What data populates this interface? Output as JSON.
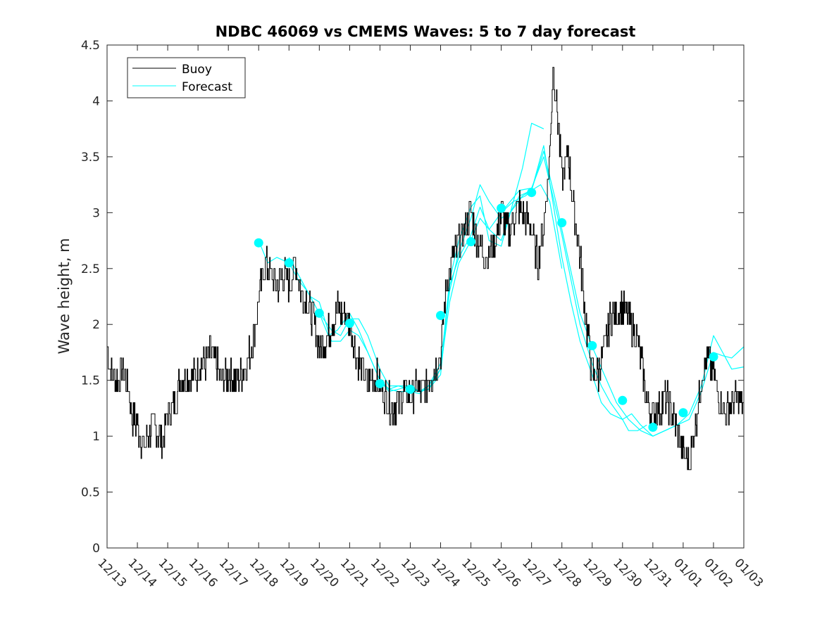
{
  "chart_data": {
    "type": "line",
    "title": "NDBC 46069 vs CMEMS Waves: 5 to 7 day forecast",
    "xlabel": "",
    "ylabel": "Wave height, m",
    "xlim": [
      0,
      21
    ],
    "ylim": [
      0,
      4.5
    ],
    "x_tick_labels": [
      "12/13",
      "12/14",
      "12/15",
      "12/16",
      "12/17",
      "12/18",
      "12/19",
      "12/20",
      "12/21",
      "12/22",
      "12/23",
      "12/24",
      "12/25",
      "12/26",
      "12/27",
      "12/28",
      "12/29",
      "12/30",
      "12/31",
      "01/01",
      "01/02",
      "01/03"
    ],
    "y_tick_labels": [
      "0",
      "0.5",
      "1",
      "1.5",
      "2",
      "2.5",
      "3",
      "3.5",
      "4",
      "4.5"
    ],
    "legend": {
      "position": "top-left",
      "entries": [
        {
          "name": "Buoy",
          "color": "#000000"
        },
        {
          "name": "Forecast",
          "color": "#00ffff"
        }
      ]
    },
    "series": [
      {
        "name": "Buoy",
        "color": "#000000",
        "keypoints": [
          [
            0,
            1.85
          ],
          [
            0.1,
            1.6
          ],
          [
            0.3,
            1.5
          ],
          [
            0.5,
            1.6
          ],
          [
            0.7,
            1.45
          ],
          [
            0.8,
            1.2
          ],
          [
            1.0,
            1.1
          ],
          [
            1.1,
            1.0
          ],
          [
            1.2,
            0.9
          ],
          [
            1.4,
            1.05
          ],
          [
            1.6,
            1.1
          ],
          [
            1.8,
            0.95
          ],
          [
            2.0,
            1.2
          ],
          [
            2.2,
            1.3
          ],
          [
            2.4,
            1.5
          ],
          [
            2.6,
            1.55
          ],
          [
            2.8,
            1.5
          ],
          [
            3.0,
            1.6
          ],
          [
            3.2,
            1.65
          ],
          [
            3.4,
            1.75
          ],
          [
            3.6,
            1.65
          ],
          [
            3.8,
            1.5
          ],
          [
            4.0,
            1.55
          ],
          [
            4.2,
            1.5
          ],
          [
            4.4,
            1.55
          ],
          [
            4.6,
            1.65
          ],
          [
            4.8,
            1.85
          ],
          [
            5.0,
            2.25
          ],
          [
            5.2,
            2.55
          ],
          [
            5.4,
            2.45
          ],
          [
            5.6,
            2.35
          ],
          [
            5.8,
            2.45
          ],
          [
            6.0,
            2.35
          ],
          [
            6.2,
            2.55
          ],
          [
            6.4,
            2.3
          ],
          [
            6.6,
            2.2
          ],
          [
            6.8,
            2.05
          ],
          [
            7.0,
            1.8
          ],
          [
            7.2,
            1.85
          ],
          [
            7.4,
            2.0
          ],
          [
            7.6,
            2.15
          ],
          [
            7.8,
            2.1
          ],
          [
            8.0,
            2.0
          ],
          [
            8.2,
            1.75
          ],
          [
            8.4,
            1.6
          ],
          [
            8.6,
            1.45
          ],
          [
            8.8,
            1.55
          ],
          [
            9.0,
            1.45
          ],
          [
            9.2,
            1.35
          ],
          [
            9.4,
            1.25
          ],
          [
            9.6,
            1.3
          ],
          [
            9.8,
            1.4
          ],
          [
            10.0,
            1.35
          ],
          [
            10.2,
            1.45
          ],
          [
            10.4,
            1.4
          ],
          [
            10.6,
            1.5
          ],
          [
            10.8,
            1.6
          ],
          [
            11.0,
            1.75
          ],
          [
            11.2,
            2.4
          ],
          [
            11.4,
            2.6
          ],
          [
            11.6,
            2.7
          ],
          [
            11.8,
            2.85
          ],
          [
            12.0,
            3.0
          ],
          [
            12.2,
            2.75
          ],
          [
            12.4,
            2.65
          ],
          [
            12.6,
            2.6
          ],
          [
            12.8,
            2.75
          ],
          [
            13.0,
            3.0
          ],
          [
            13.2,
            2.8
          ],
          [
            13.4,
            2.95
          ],
          [
            13.6,
            3.05
          ],
          [
            13.8,
            2.95
          ],
          [
            14.0,
            2.85
          ],
          [
            14.2,
            2.55
          ],
          [
            14.4,
            2.9
          ],
          [
            14.6,
            3.5
          ],
          [
            14.7,
            4.35
          ],
          [
            14.9,
            3.7
          ],
          [
            15.0,
            3.3
          ],
          [
            15.2,
            3.55
          ],
          [
            15.4,
            3.0
          ],
          [
            15.6,
            2.6
          ],
          [
            15.8,
            2.0
          ],
          [
            16.0,
            1.55
          ],
          [
            16.2,
            1.55
          ],
          [
            16.4,
            1.8
          ],
          [
            16.6,
            2.05
          ],
          [
            16.8,
            2.1
          ],
          [
            17.0,
            2.15
          ],
          [
            17.2,
            2.05
          ],
          [
            17.4,
            1.95
          ],
          [
            17.6,
            1.7
          ],
          [
            17.8,
            1.3
          ],
          [
            18.0,
            1.2
          ],
          [
            18.2,
            1.25
          ],
          [
            18.4,
            1.35
          ],
          [
            18.6,
            1.25
          ],
          [
            18.8,
            1.05
          ],
          [
            19.0,
            0.85
          ],
          [
            19.2,
            0.75
          ],
          [
            19.4,
            1.1
          ],
          [
            19.6,
            1.55
          ],
          [
            19.8,
            1.7
          ],
          [
            20.0,
            1.55
          ],
          [
            20.2,
            1.35
          ],
          [
            20.4,
            1.2
          ],
          [
            20.6,
            1.3
          ],
          [
            20.8,
            1.35
          ],
          [
            21.0,
            1.3
          ]
        ]
      },
      {
        "name": "Forecast",
        "color": "#00ffff",
        "runs": [
          [
            [
              5.0,
              2.75
            ],
            [
              5.3,
              2.55
            ],
            [
              5.6,
              2.6
            ],
            [
              6.0,
              2.55
            ],
            [
              6.3,
              2.4
            ],
            [
              6.6,
              2.3
            ],
            [
              7.0,
              2.1
            ],
            [
              7.3,
              1.9
            ],
            [
              7.6,
              1.95
            ],
            [
              8.0,
              2.1
            ],
            [
              8.3,
              1.95
            ],
            [
              8.6,
              1.75
            ],
            [
              9.0,
              1.5
            ],
            [
              9.3,
              1.4
            ],
            [
              9.6,
              1.42
            ],
            [
              10.0,
              1.45
            ],
            [
              10.3,
              1.4
            ],
            [
              10.6,
              1.45
            ],
            [
              11.0,
              1.6
            ],
            [
              11.3,
              2.4
            ],
            [
              11.6,
              2.75
            ],
            [
              12.0,
              3.05
            ],
            [
              12.3,
              3.15
            ],
            [
              12.6,
              2.75
            ],
            [
              13.0,
              2.7
            ],
            [
              13.3,
              3.0
            ],
            [
              13.7,
              3.4
            ],
            [
              14.0,
              3.8
            ],
            [
              14.4,
              3.75
            ]
          ],
          [
            [
              6.0,
              2.6
            ],
            [
              6.4,
              2.4
            ],
            [
              6.7,
              2.25
            ],
            [
              7.0,
              2.2
            ],
            [
              7.4,
              1.85
            ],
            [
              7.7,
              1.85
            ],
            [
              8.0,
              1.95
            ],
            [
              8.3,
              1.9
            ],
            [
              8.6,
              1.75
            ],
            [
              9.0,
              1.5
            ],
            [
              9.3,
              1.42
            ],
            [
              9.6,
              1.4
            ],
            [
              10.0,
              1.4
            ],
            [
              10.3,
              1.38
            ],
            [
              10.6,
              1.45
            ],
            [
              11.0,
              1.65
            ],
            [
              11.3,
              2.3
            ],
            [
              11.6,
              2.65
            ],
            [
              12.0,
              2.95
            ],
            [
              12.3,
              3.25
            ],
            [
              12.6,
              3.1
            ],
            [
              13.0,
              2.95
            ],
            [
              13.3,
              3.0
            ],
            [
              13.6,
              3.15
            ],
            [
              14.0,
              3.2
            ],
            [
              14.3,
              3.25
            ],
            [
              14.6,
              3.1
            ],
            [
              15.0,
              2.5
            ]
          ],
          [
            [
              7.0,
              2.1
            ],
            [
              7.4,
              1.95
            ],
            [
              7.7,
              1.9
            ],
            [
              8.0,
              2.05
            ],
            [
              8.3,
              2.05
            ],
            [
              8.6,
              1.9
            ],
            [
              9.0,
              1.6
            ],
            [
              9.3,
              1.45
            ],
            [
              9.6,
              1.45
            ],
            [
              10.0,
              1.45
            ],
            [
              10.3,
              1.4
            ],
            [
              10.6,
              1.42
            ],
            [
              11.0,
              1.55
            ],
            [
              11.3,
              2.35
            ],
            [
              11.6,
              2.6
            ],
            [
              12.0,
              2.8
            ],
            [
              12.3,
              3.05
            ],
            [
              12.6,
              2.85
            ],
            [
              13.0,
              2.75
            ],
            [
              13.3,
              3.0
            ],
            [
              13.7,
              3.15
            ],
            [
              14.0,
              3.2
            ],
            [
              14.4,
              3.6
            ],
            [
              14.7,
              3.1
            ],
            [
              15.0,
              2.6
            ],
            [
              15.3,
              2.2
            ],
            [
              15.6,
              1.85
            ],
            [
              16.0,
              1.55
            ],
            [
              16.3,
              1.3
            ],
            [
              16.6,
              1.2
            ],
            [
              17.0,
              1.15
            ],
            [
              17.2,
              1.05
            ],
            [
              17.5,
              1.05
            ],
            [
              17.8,
              1.1
            ]
          ],
          [
            [
              9.0,
              1.5
            ],
            [
              9.3,
              1.42
            ],
            [
              9.6,
              1.45
            ],
            [
              10.0,
              1.42
            ],
            [
              10.3,
              1.4
            ],
            [
              10.6,
              1.42
            ],
            [
              11.0,
              1.6
            ],
            [
              11.3,
              2.2
            ],
            [
              11.6,
              2.55
            ],
            [
              12.0,
              2.75
            ],
            [
              12.3,
              2.95
            ],
            [
              12.6,
              2.85
            ],
            [
              13.0,
              3.0
            ],
            [
              13.3,
              3.1
            ],
            [
              13.6,
              3.2
            ],
            [
              14.0,
              3.22
            ],
            [
              14.4,
              3.5
            ],
            [
              14.7,
              3.15
            ],
            [
              15.0,
              2.8
            ],
            [
              15.3,
              2.4
            ],
            [
              15.6,
              2.0
            ],
            [
              16.0,
              1.65
            ],
            [
              16.3,
              1.45
            ],
            [
              16.6,
              1.3
            ],
            [
              17.0,
              1.15
            ],
            [
              17.3,
              1.2
            ],
            [
              17.6,
              1.1
            ],
            [
              18.0,
              1.0
            ],
            [
              18.4,
              1.05
            ],
            [
              18.8,
              1.1
            ],
            [
              19.2,
              1.15
            ],
            [
              19.6,
              1.4
            ],
            [
              20.0,
              1.75
            ],
            [
              20.3,
              1.72
            ],
            [
              20.6,
              1.7
            ],
            [
              21.0,
              1.8
            ]
          ],
          [
            [
              13.0,
              3.0
            ],
            [
              13.4,
              3.1
            ],
            [
              13.8,
              3.15
            ],
            [
              14.0,
              3.2
            ],
            [
              14.4,
              3.55
            ],
            [
              14.8,
              3.1
            ],
            [
              15.2,
              2.6
            ],
            [
              15.6,
              2.1
            ],
            [
              16.0,
              1.8
            ],
            [
              16.4,
              1.55
            ],
            [
              16.8,
              1.3
            ],
            [
              17.2,
              1.15
            ],
            [
              17.6,
              1.05
            ],
            [
              18.0,
              1.0
            ],
            [
              18.4,
              1.05
            ],
            [
              18.8,
              1.1
            ],
            [
              19.2,
              1.2
            ],
            [
              19.6,
              1.45
            ],
            [
              20.0,
              1.9
            ],
            [
              20.3,
              1.75
            ],
            [
              20.6,
              1.6
            ],
            [
              21.0,
              1.62
            ]
          ]
        ]
      }
    ],
    "markers": {
      "name": "Forecast initial points",
      "color": "#00ffff",
      "points": [
        [
          5.0,
          2.73
        ],
        [
          6.0,
          2.55
        ],
        [
          7.0,
          2.1
        ],
        [
          8.0,
          2.01
        ],
        [
          9.0,
          1.47
        ],
        [
          10.0,
          1.42
        ],
        [
          11.0,
          2.08
        ],
        [
          12.0,
          2.74
        ],
        [
          13.0,
          3.04
        ],
        [
          14.0,
          3.18
        ],
        [
          15.0,
          2.91
        ],
        [
          16.0,
          1.81
        ],
        [
          17.0,
          1.32
        ],
        [
          18.0,
          1.08
        ],
        [
          19.0,
          1.21
        ],
        [
          20.0,
          1.71
        ]
      ]
    }
  }
}
